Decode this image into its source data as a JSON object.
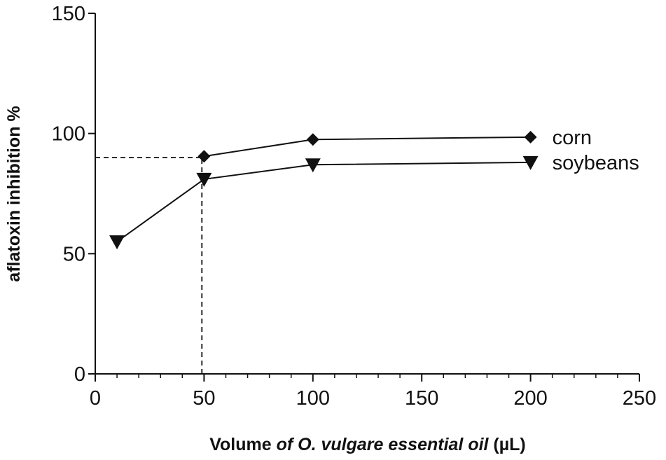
{
  "chart_data": {
    "type": "line",
    "xlabel": {
      "part1": "Volume ",
      "part2": "of O. vulgare essential oil",
      "part3": "  (µL)"
    },
    "ylabel": "aflatoxin inhibition %",
    "xlim": [
      0,
      250
    ],
    "ylim": [
      0,
      150
    ],
    "x_ticks": [
      0,
      50,
      100,
      150,
      200,
      250
    ],
    "y_ticks": [
      0,
      50,
      100,
      150
    ],
    "x_tick_labels": [
      "0",
      "50",
      "100",
      "150",
      "200",
      "250"
    ],
    "y_tick_labels": [
      "0",
      "50",
      "100",
      "150"
    ],
    "x_minor_step": 10,
    "grid": false,
    "legend_position": "right",
    "series": [
      {
        "name": "corn",
        "marker": "diamond",
        "color": "#111111",
        "x": [
          50,
          100,
          200
        ],
        "y": [
          90.5,
          97.5,
          98.5
        ]
      },
      {
        "name": "soybeans",
        "marker": "triangle-down",
        "color": "#111111",
        "x": [
          10,
          50,
          100,
          200
        ],
        "y": [
          55,
          81,
          87,
          88
        ]
      }
    ],
    "reference_lines": {
      "x": 49,
      "y": 90
    }
  }
}
